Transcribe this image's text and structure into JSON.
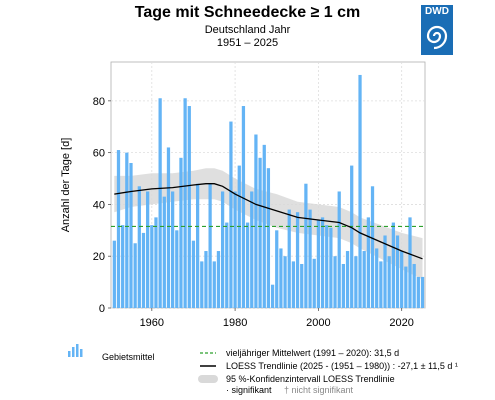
{
  "header": {
    "title": "Tage mit Schneedecke ≥ 1 cm",
    "region": "Deutschland Jahr",
    "period": "1951 – 2025"
  },
  "logo": {
    "text": "DWD"
  },
  "legend": {
    "bars": "Gebietsmittel",
    "mean": "vieljähriger Mittelwert (1991 – 2020): 31,5 d",
    "trend": "LOESS Trendlinie (2025 - (1951 – 1980)) : -27,1 ± 11,5 d ¹",
    "ci": "95 %-Konfidenzintervall LOESS Trendlinie",
    "sig": "· signifikant",
    "nonsig": "† nicht signifikant"
  },
  "colors": {
    "bars": "#64b4f5",
    "mean_line": "#2ca02c",
    "trend": "#000000",
    "ci_band": "#d9d9d9",
    "logo": "#1a6db5"
  },
  "chart_data": {
    "type": "bar",
    "ylabel": "Anzahl der Tage [d]",
    "xlabel": "",
    "ylim": [
      0,
      95
    ],
    "xlim": [
      1950.2,
      2025.6
    ],
    "xticks": [
      1960,
      1980,
      2000,
      2020
    ],
    "yticks": [
      0,
      20,
      40,
      60,
      80
    ],
    "grid": true,
    "x": [
      1951,
      1952,
      1953,
      1954,
      1955,
      1956,
      1957,
      1958,
      1959,
      1960,
      1961,
      1962,
      1963,
      1964,
      1965,
      1966,
      1967,
      1968,
      1969,
      1970,
      1971,
      1972,
      1973,
      1974,
      1975,
      1976,
      1977,
      1978,
      1979,
      1980,
      1981,
      1982,
      1983,
      1984,
      1985,
      1986,
      1987,
      1988,
      1989,
      1990,
      1991,
      1992,
      1993,
      1994,
      1995,
      1996,
      1997,
      1998,
      1999,
      2000,
      2001,
      2002,
      2003,
      2004,
      2005,
      2006,
      2007,
      2008,
      2009,
      2010,
      2011,
      2012,
      2013,
      2014,
      2015,
      2016,
      2017,
      2018,
      2019,
      2020,
      2021,
      2022,
      2023,
      2024,
      2025
    ],
    "values": [
      26,
      61,
      32,
      60,
      56,
      25,
      47,
      29,
      45,
      32,
      35,
      81,
      43,
      62,
      45,
      30,
      58,
      81,
      78,
      26,
      48,
      18,
      22,
      48,
      18,
      22,
      45,
      33,
      72,
      45,
      55,
      78,
      33,
      45,
      67,
      58,
      63,
      54,
      9,
      30,
      23,
      20,
      38,
      18,
      37,
      17,
      48,
      38,
      19,
      34,
      35,
      32,
      31,
      20,
      45,
      17,
      22,
      55,
      20,
      90,
      22,
      35,
      47,
      23,
      18,
      28,
      20,
      33,
      28,
      22,
      16,
      35,
      17,
      12,
      12
    ],
    "series": [
      {
        "kind": "mean",
        "value": 31.5
      },
      {
        "kind": "loess",
        "x": [
          1951,
          1955,
          1960,
          1965,
          1970,
          1973,
          1975,
          1977,
          1980,
          1985,
          1990,
          1995,
          2000,
          2005,
          2008,
          2010,
          2015,
          2020,
          2025
        ],
        "values": [
          44,
          45,
          46,
          46.5,
          47.5,
          48,
          48,
          47,
          44,
          40,
          37.5,
          35,
          34,
          33,
          31,
          29,
          25.5,
          22,
          19
        ]
      },
      {
        "kind": "ci95",
        "x": [
          1951,
          1955,
          1960,
          1965,
          1970,
          1973,
          1975,
          1977,
          1980,
          1985,
          1990,
          1995,
          2000,
          2005,
          2008,
          2010,
          2015,
          2020,
          2025
        ],
        "lower": [
          37,
          39,
          40,
          41,
          42,
          42,
          42,
          41,
          38,
          34,
          31,
          29,
          28,
          27,
          25,
          23,
          19,
          15,
          11
        ],
        "upper": [
          51,
          51,
          52,
          52,
          53,
          54,
          54,
          53,
          50,
          46,
          44,
          41,
          40,
          39,
          37,
          35,
          32,
          29,
          27
        ]
      }
    ]
  }
}
